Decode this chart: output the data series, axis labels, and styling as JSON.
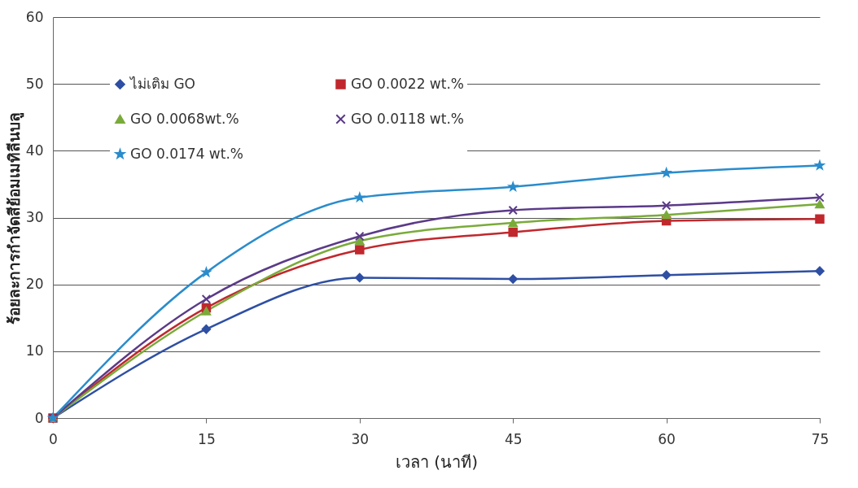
{
  "chart_data": {
    "type": "line",
    "xlabel": "เวลา (นาที)",
    "ylabel": "ร้อยละการกำจัดสีย้อมเมทิลีนบลู",
    "x": [
      0,
      15,
      30,
      45,
      60,
      75
    ],
    "xlim": [
      0,
      75
    ],
    "xticks": [
      0,
      15,
      30,
      45,
      60,
      75
    ],
    "ylim": [
      0,
      60
    ],
    "yticks": [
      0,
      10,
      20,
      30,
      40,
      50,
      60
    ],
    "grid": "y",
    "legend": "top left",
    "series": [
      {
        "name": "ไม่เติม GO",
        "color": "#2e4fa3",
        "marker": "diamond",
        "values": [
          0,
          13.3,
          21,
          20.8,
          21.4,
          22
        ]
      },
      {
        "name": "GO 0.0022 wt.%",
        "color": "#c0282d",
        "marker": "square",
        "values": [
          0,
          16.5,
          25.2,
          27.8,
          29.5,
          29.8
        ]
      },
      {
        "name": "GO 0.0068wt.%",
        "color": "#7aab3a",
        "marker": "triangle",
        "values": [
          0,
          16,
          26.5,
          29.2,
          30.4,
          32
        ]
      },
      {
        "name": "GO 0.0118 wt.%",
        "color": "#5b3a88",
        "marker": "cross",
        "values": [
          0,
          17.8,
          27.2,
          31.1,
          31.8,
          33
        ]
      },
      {
        "name": "GO 0.0174 wt.%",
        "color": "#2a8ccc",
        "marker": "star",
        "values": [
          0,
          21.8,
          33,
          34.6,
          36.7,
          37.8
        ]
      }
    ]
  }
}
